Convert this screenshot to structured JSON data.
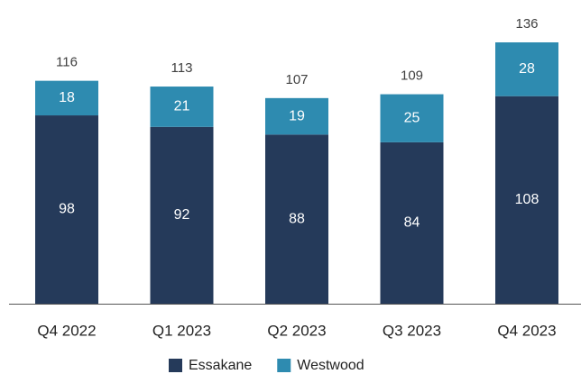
{
  "chart_data": {
    "type": "stacked-bar",
    "categories": [
      "Q4 2022",
      "Q1 2023",
      "Q2 2023",
      "Q3 2023",
      "Q4 2023"
    ],
    "series": [
      {
        "name": "Essakane",
        "color": "#253a5a",
        "values": [
          98,
          92,
          88,
          84,
          108
        ]
      },
      {
        "name": "Westwood",
        "color": "#2e8bb0",
        "values": [
          18,
          21,
          19,
          25,
          28
        ]
      }
    ],
    "totals": [
      116,
      113,
      107,
      109,
      136
    ],
    "legend": "bottom"
  }
}
